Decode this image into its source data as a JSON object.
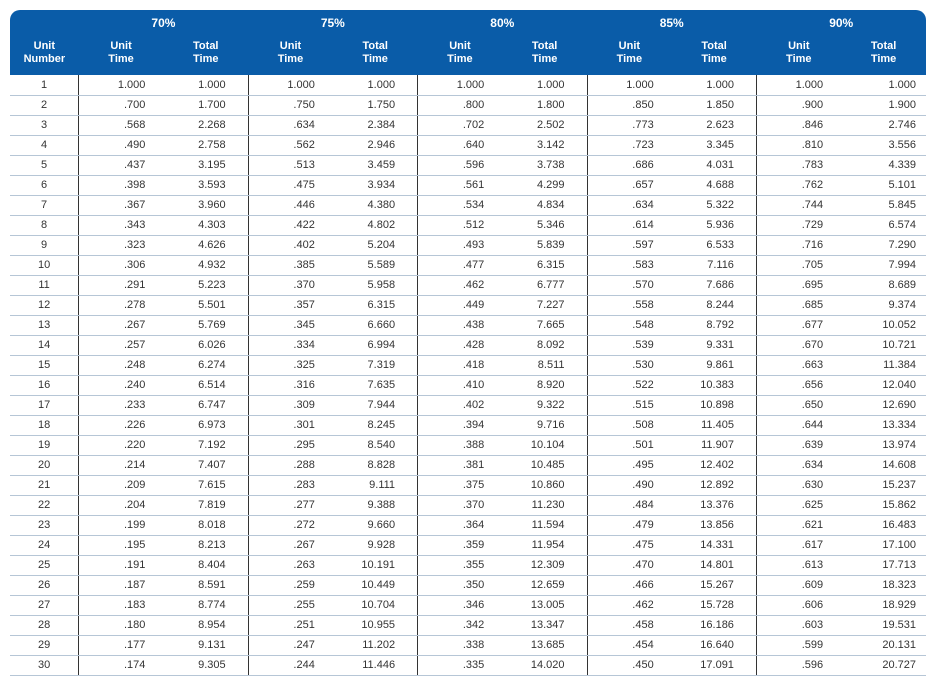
{
  "table": {
    "header": {
      "unit_number": "Unit\nNumber",
      "unit_time": "Unit\nTime",
      "total_time": "Total\nTime",
      "percents": [
        "70%",
        "75%",
        "80%",
        "85%",
        "90%"
      ]
    },
    "colors": {
      "header_bg": "#0a5ca8",
      "header_text": "#ffffff",
      "row_border": "#b6c6d6",
      "col_divider": "#333333",
      "body_text": "#333333",
      "background": "#ffffff"
    },
    "fontsize": {
      "header_pct": 12,
      "header_sub": 11,
      "body": 11
    },
    "rows": [
      {
        "n": "1",
        "c": [
          [
            "1.000",
            "1.000"
          ],
          [
            "1.000",
            "1.000"
          ],
          [
            "1.000",
            "1.000"
          ],
          [
            "1.000",
            "1.000"
          ],
          [
            "1.000",
            "1.000"
          ]
        ]
      },
      {
        "n": "2",
        "c": [
          [
            ".700",
            "1.700"
          ],
          [
            ".750",
            "1.750"
          ],
          [
            ".800",
            "1.800"
          ],
          [
            ".850",
            "1.850"
          ],
          [
            ".900",
            "1.900"
          ]
        ]
      },
      {
        "n": "3",
        "c": [
          [
            ".568",
            "2.268"
          ],
          [
            ".634",
            "2.384"
          ],
          [
            ".702",
            "2.502"
          ],
          [
            ".773",
            "2.623"
          ],
          [
            ".846",
            "2.746"
          ]
        ]
      },
      {
        "n": "4",
        "c": [
          [
            ".490",
            "2.758"
          ],
          [
            ".562",
            "2.946"
          ],
          [
            ".640",
            "3.142"
          ],
          [
            ".723",
            "3.345"
          ],
          [
            ".810",
            "3.556"
          ]
        ]
      },
      {
        "n": "5",
        "c": [
          [
            ".437",
            "3.195"
          ],
          [
            ".513",
            "3.459"
          ],
          [
            ".596",
            "3.738"
          ],
          [
            ".686",
            "4.031"
          ],
          [
            ".783",
            "4.339"
          ]
        ]
      },
      {
        "n": "6",
        "c": [
          [
            ".398",
            "3.593"
          ],
          [
            ".475",
            "3.934"
          ],
          [
            ".561",
            "4.299"
          ],
          [
            ".657",
            "4.688"
          ],
          [
            ".762",
            "5.101"
          ]
        ]
      },
      {
        "n": "7",
        "c": [
          [
            ".367",
            "3.960"
          ],
          [
            ".446",
            "4.380"
          ],
          [
            ".534",
            "4.834"
          ],
          [
            ".634",
            "5.322"
          ],
          [
            ".744",
            "5.845"
          ]
        ]
      },
      {
        "n": "8",
        "c": [
          [
            ".343",
            "4.303"
          ],
          [
            ".422",
            "4.802"
          ],
          [
            ".512",
            "5.346"
          ],
          [
            ".614",
            "5.936"
          ],
          [
            ".729",
            "6.574"
          ]
        ]
      },
      {
        "n": "9",
        "c": [
          [
            ".323",
            "4.626"
          ],
          [
            ".402",
            "5.204"
          ],
          [
            ".493",
            "5.839"
          ],
          [
            ".597",
            "6.533"
          ],
          [
            ".716",
            "7.290"
          ]
        ]
      },
      {
        "n": "10",
        "c": [
          [
            ".306",
            "4.932"
          ],
          [
            ".385",
            "5.589"
          ],
          [
            ".477",
            "6.315"
          ],
          [
            ".583",
            "7.116"
          ],
          [
            ".705",
            "7.994"
          ]
        ]
      },
      {
        "n": "11",
        "c": [
          [
            ".291",
            "5.223"
          ],
          [
            ".370",
            "5.958"
          ],
          [
            ".462",
            "6.777"
          ],
          [
            ".570",
            "7.686"
          ],
          [
            ".695",
            "8.689"
          ]
        ]
      },
      {
        "n": "12",
        "c": [
          [
            ".278",
            "5.501"
          ],
          [
            ".357",
            "6.315"
          ],
          [
            ".449",
            "7.227"
          ],
          [
            ".558",
            "8.244"
          ],
          [
            ".685",
            "9.374"
          ]
        ]
      },
      {
        "n": "13",
        "c": [
          [
            ".267",
            "5.769"
          ],
          [
            ".345",
            "6.660"
          ],
          [
            ".438",
            "7.665"
          ],
          [
            ".548",
            "8.792"
          ],
          [
            ".677",
            "10.052"
          ]
        ]
      },
      {
        "n": "14",
        "c": [
          [
            ".257",
            "6.026"
          ],
          [
            ".334",
            "6.994"
          ],
          [
            ".428",
            "8.092"
          ],
          [
            ".539",
            "9.331"
          ],
          [
            ".670",
            "10.721"
          ]
        ]
      },
      {
        "n": "15",
        "c": [
          [
            ".248",
            "6.274"
          ],
          [
            ".325",
            "7.319"
          ],
          [
            ".418",
            "8.511"
          ],
          [
            ".530",
            "9.861"
          ],
          [
            ".663",
            "11.384"
          ]
        ]
      },
      {
        "n": "16",
        "c": [
          [
            ".240",
            "6.514"
          ],
          [
            ".316",
            "7.635"
          ],
          [
            ".410",
            "8.920"
          ],
          [
            ".522",
            "10.383"
          ],
          [
            ".656",
            "12.040"
          ]
        ]
      },
      {
        "n": "17",
        "c": [
          [
            ".233",
            "6.747"
          ],
          [
            ".309",
            "7.944"
          ],
          [
            ".402",
            "9.322"
          ],
          [
            ".515",
            "10.898"
          ],
          [
            ".650",
            "12.690"
          ]
        ]
      },
      {
        "n": "18",
        "c": [
          [
            ".226",
            "6.973"
          ],
          [
            ".301",
            "8.245"
          ],
          [
            ".394",
            "9.716"
          ],
          [
            ".508",
            "11.405"
          ],
          [
            ".644",
            "13.334"
          ]
        ]
      },
      {
        "n": "19",
        "c": [
          [
            ".220",
            "7.192"
          ],
          [
            ".295",
            "8.540"
          ],
          [
            ".388",
            "10.104"
          ],
          [
            ".501",
            "11.907"
          ],
          [
            ".639",
            "13.974"
          ]
        ]
      },
      {
        "n": "20",
        "c": [
          [
            ".214",
            "7.407"
          ],
          [
            ".288",
            "8.828"
          ],
          [
            ".381",
            "10.485"
          ],
          [
            ".495",
            "12.402"
          ],
          [
            ".634",
            "14.608"
          ]
        ]
      },
      {
        "n": "21",
        "c": [
          [
            ".209",
            "7.615"
          ],
          [
            ".283",
            "9.111"
          ],
          [
            ".375",
            "10.860"
          ],
          [
            ".490",
            "12.892"
          ],
          [
            ".630",
            "15.237"
          ]
        ]
      },
      {
        "n": "22",
        "c": [
          [
            ".204",
            "7.819"
          ],
          [
            ".277",
            "9.388"
          ],
          [
            ".370",
            "11.230"
          ],
          [
            ".484",
            "13.376"
          ],
          [
            ".625",
            "15.862"
          ]
        ]
      },
      {
        "n": "23",
        "c": [
          [
            ".199",
            "8.018"
          ],
          [
            ".272",
            "9.660"
          ],
          [
            ".364",
            "11.594"
          ],
          [
            ".479",
            "13.856"
          ],
          [
            ".621",
            "16.483"
          ]
        ]
      },
      {
        "n": "24",
        "c": [
          [
            ".195",
            "8.213"
          ],
          [
            ".267",
            "9.928"
          ],
          [
            ".359",
            "11.954"
          ],
          [
            ".475",
            "14.331"
          ],
          [
            ".617",
            "17.100"
          ]
        ]
      },
      {
        "n": "25",
        "c": [
          [
            ".191",
            "8.404"
          ],
          [
            ".263",
            "10.191"
          ],
          [
            ".355",
            "12.309"
          ],
          [
            ".470",
            "14.801"
          ],
          [
            ".613",
            "17.713"
          ]
        ]
      },
      {
        "n": "26",
        "c": [
          [
            ".187",
            "8.591"
          ],
          [
            ".259",
            "10.449"
          ],
          [
            ".350",
            "12.659"
          ],
          [
            ".466",
            "15.267"
          ],
          [
            ".609",
            "18.323"
          ]
        ]
      },
      {
        "n": "27",
        "c": [
          [
            ".183",
            "8.774"
          ],
          [
            ".255",
            "10.704"
          ],
          [
            ".346",
            "13.005"
          ],
          [
            ".462",
            "15.728"
          ],
          [
            ".606",
            "18.929"
          ]
        ]
      },
      {
        "n": "28",
        "c": [
          [
            ".180",
            "8.954"
          ],
          [
            ".251",
            "10.955"
          ],
          [
            ".342",
            "13.347"
          ],
          [
            ".458",
            "16.186"
          ],
          [
            ".603",
            "19.531"
          ]
        ]
      },
      {
        "n": "29",
        "c": [
          [
            ".177",
            "9.131"
          ],
          [
            ".247",
            "11.202"
          ],
          [
            ".338",
            "13.685"
          ],
          [
            ".454",
            "16.640"
          ],
          [
            ".599",
            "20.131"
          ]
        ]
      },
      {
        "n": "30",
        "c": [
          [
            ".174",
            "9.305"
          ],
          [
            ".244",
            "11.446"
          ],
          [
            ".335",
            "14.020"
          ],
          [
            ".450",
            "17.091"
          ],
          [
            ".596",
            "20.727"
          ]
        ]
      }
    ]
  }
}
